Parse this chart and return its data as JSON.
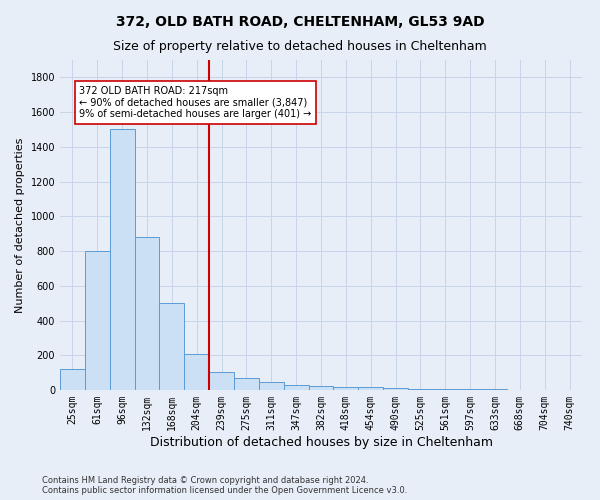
{
  "title": "372, OLD BATH ROAD, CHELTENHAM, GL53 9AD",
  "subtitle": "Size of property relative to detached houses in Cheltenham",
  "xlabel": "Distribution of detached houses by size in Cheltenham",
  "ylabel": "Number of detached properties",
  "footer_line1": "Contains HM Land Registry data © Crown copyright and database right 2024.",
  "footer_line2": "Contains public sector information licensed under the Open Government Licence v3.0.",
  "categories": [
    "25sqm",
    "61sqm",
    "96sqm",
    "132sqm",
    "168sqm",
    "204sqm",
    "239sqm",
    "275sqm",
    "311sqm",
    "347sqm",
    "382sqm",
    "418sqm",
    "454sqm",
    "490sqm",
    "525sqm",
    "561sqm",
    "597sqm",
    "633sqm",
    "668sqm",
    "704sqm",
    "740sqm"
  ],
  "values": [
    120,
    800,
    1500,
    880,
    500,
    210,
    105,
    70,
    45,
    30,
    25,
    20,
    15,
    10,
    8,
    5,
    4,
    3,
    2,
    1,
    1
  ],
  "bar_color": "#cce0f5",
  "bar_edge_color": "#5b9bd5",
  "vline_color": "#cc0000",
  "annotation_text": "372 OLD BATH ROAD: 217sqm\n← 90% of detached houses are smaller (3,847)\n9% of semi-detached houses are larger (401) →",
  "annotation_box_color": "#ffffff",
  "annotation_box_edge": "#cc0000",
  "ylim": [
    0,
    1900
  ],
  "yticks": [
    0,
    200,
    400,
    600,
    800,
    1000,
    1200,
    1400,
    1600,
    1800
  ],
  "grid_color": "#c8d4e8",
  "background_color": "#e8eef8",
  "plot_bg_color": "#e8eef8",
  "title_fontsize": 10,
  "subtitle_fontsize": 9,
  "ylabel_fontsize": 8,
  "xlabel_fontsize": 9,
  "tick_fontsize": 7,
  "annot_fontsize": 7,
  "footer_fontsize": 6
}
